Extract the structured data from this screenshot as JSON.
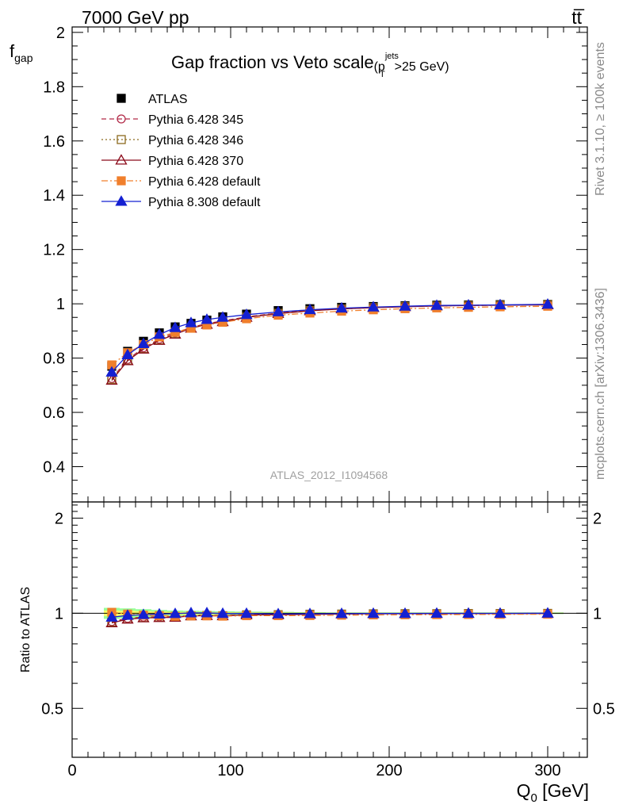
{
  "header": {
    "left": "7000 GeV pp",
    "right": "tt̅"
  },
  "side": {
    "rivet": "Rivet 3.1.10, ≥ 100k events",
    "mcplots": "mcplots.cern.ch [arXiv:1306.3436]"
  },
  "chart_data": [
    {
      "id": "main",
      "type": "line",
      "title": "Gap fraction vs Veto scale",
      "title_suffix": {
        "p": "(p",
        "sup": "jets",
        "sub": "T",
        "tail": ">25 GeV)"
      },
      "ylabel": {
        "main": "f",
        "sub": "gap"
      },
      "xlim": [
        0,
        325
      ],
      "ylim": [
        0.27,
        2.02
      ],
      "yticks": [
        0.4,
        0.6,
        0.8,
        1,
        1.2,
        1.4,
        1.6,
        1.8,
        2
      ],
      "ytick_labels": [
        "0.4",
        "0.6",
        "0.8",
        "1",
        "1.2",
        "1.4",
        "1.6",
        "1.8",
        "2"
      ],
      "watermark": "ATLAS_2012_I1094568",
      "x": [
        25,
        35,
        45,
        55,
        65,
        75,
        85,
        95,
        110,
        130,
        150,
        170,
        190,
        210,
        230,
        250,
        270,
        300
      ],
      "series": [
        {
          "name": "ATLAS",
          "color": "#000000",
          "marker": "square-filled",
          "line": "none",
          "values": [
            0.77,
            0.825,
            0.862,
            0.893,
            0.915,
            0.928,
            0.94,
            0.952,
            0.962,
            0.975,
            0.982,
            0.987,
            0.99,
            0.993,
            0.995,
            0.996,
            0.997,
            0.998
          ]
        },
        {
          "name": "Pythia 6.428 345",
          "color": "#b22a48",
          "marker": "circle-open",
          "line": "dashed",
          "values": [
            0.725,
            0.795,
            0.838,
            0.87,
            0.893,
            0.913,
            0.927,
            0.937,
            0.952,
            0.966,
            0.976,
            0.982,
            0.987,
            0.99,
            0.993,
            0.994,
            0.995,
            0.997
          ]
        },
        {
          "name": "Pythia 6.428 346",
          "color": "#8c6a1e",
          "marker": "square-open",
          "line": "dotted",
          "values": [
            0.722,
            0.792,
            0.835,
            0.867,
            0.89,
            0.911,
            0.925,
            0.935,
            0.951,
            0.965,
            0.975,
            0.981,
            0.986,
            0.99,
            0.992,
            0.994,
            0.995,
            0.997
          ]
        },
        {
          "name": "Pythia 6.428 370",
          "color": "#8b0a1a",
          "marker": "triangle-open",
          "line": "solid",
          "values": [
            0.718,
            0.79,
            0.833,
            0.865,
            0.888,
            0.91,
            0.924,
            0.934,
            0.95,
            0.964,
            0.974,
            0.981,
            0.986,
            0.989,
            0.992,
            0.994,
            0.995,
            0.996
          ]
        },
        {
          "name": "Pythia 6.428 default",
          "color": "#f07f2c",
          "marker": "square-filled",
          "line": "dashdot",
          "values": [
            0.775,
            0.82,
            0.85,
            0.878,
            0.895,
            0.91,
            0.922,
            0.932,
            0.945,
            0.958,
            0.966,
            0.973,
            0.978,
            0.982,
            0.985,
            0.987,
            0.989,
            0.991
          ]
        },
        {
          "name": "Pythia 8.308 default",
          "color": "#1420d2",
          "marker": "triangle-filled",
          "line": "solid",
          "values": [
            0.748,
            0.812,
            0.853,
            0.887,
            0.912,
            0.93,
            0.942,
            0.95,
            0.96,
            0.97,
            0.978,
            0.984,
            0.988,
            0.991,
            0.994,
            0.995,
            0.996,
            0.998
          ]
        }
      ],
      "legend": {
        "placement": "top-left"
      }
    },
    {
      "id": "ratio",
      "type": "line",
      "ylabel": "Ratio to ATLAS",
      "xlabel": {
        "main": "Q",
        "sub": "0",
        "tail": " [GeV]"
      },
      "xlim": [
        0,
        325
      ],
      "ylim": [
        0.35,
        2.25
      ],
      "yticks": [
        0.5,
        1,
        2
      ],
      "ytick_labels": [
        "0.5",
        "1",
        "2"
      ],
      "xticks": [
        0,
        100,
        200,
        300
      ],
      "xtick_labels": [
        "0",
        "100",
        "200",
        "300"
      ],
      "band": {
        "inner_color": "#ffff66",
        "outer_color": "#99ff99"
      },
      "band_halfwidth": [
        0.02,
        0.018,
        0.015,
        0.012,
        0.01,
        0.009,
        0.008,
        0.007,
        0.006,
        0.005,
        0.004,
        0.003,
        0.003,
        0.003,
        0.003,
        0.003,
        0.003,
        0.003
      ]
    }
  ]
}
